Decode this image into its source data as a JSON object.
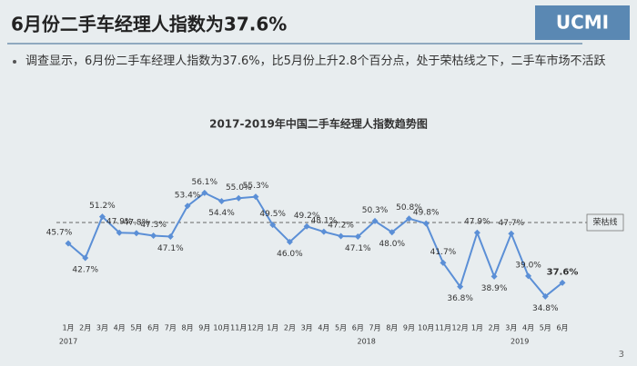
{
  "header": {
    "title": "6月份二手车经理人指数为37.6%",
    "logo": "UCMI"
  },
  "bullet": "调查显示，6月份二手车经理人指数为37.6%，比5月份上升2.8个百分点，处于荣枯线之下，二手车市场不活跃",
  "page_number": "3",
  "chart_data": {
    "type": "line",
    "title": "2017-2019年中国二手车经理人指数趋势图",
    "categories": [
      "1月",
      "2月",
      "3月",
      "4月",
      "5月",
      "6月",
      "7月",
      "8月",
      "9月",
      "10月",
      "11月",
      "12月",
      "1月",
      "2月",
      "3月",
      "4月",
      "5月",
      "6月",
      "7月",
      "8月",
      "9月",
      "10月",
      "11月",
      "12月",
      "1月",
      "2月",
      "3月",
      "4月",
      "5月",
      "6月"
    ],
    "years": [
      "2017",
      "2018",
      "2019"
    ],
    "values": [
      45.7,
      42.7,
      51.2,
      47.9,
      47.8,
      47.3,
      47.1,
      53.4,
      56.1,
      54.4,
      55.0,
      55.3,
      49.5,
      46.0,
      49.2,
      48.1,
      47.2,
      47.1,
      50.3,
      48.0,
      50.8,
      49.8,
      41.7,
      36.8,
      47.9,
      38.9,
      47.7,
      39.0,
      34.8,
      37.6
    ],
    "value_labels": [
      "45.7%",
      "42.7%",
      "51.2%",
      "47.9%",
      "47.8%",
      "47.3%",
      "47.1%",
      "53.4%",
      "56.1%",
      "54.4%",
      "55.0%",
      "55.3%",
      "49.5%",
      "46.0%",
      "49.2%",
      "48.1%",
      "47.2%",
      "47.1%",
      "50.3%",
      "48.0%",
      "50.8%",
      "49.8%",
      "41.7%",
      "36.8%",
      "47.9%",
      "38.9%",
      "47.7%",
      "39.0%",
      "34.8%",
      "37.6%"
    ],
    "color": "#5b8fd6",
    "ylim": [
      30,
      60
    ],
    "reference_line": {
      "value": 50,
      "label": "荣枯线"
    }
  }
}
